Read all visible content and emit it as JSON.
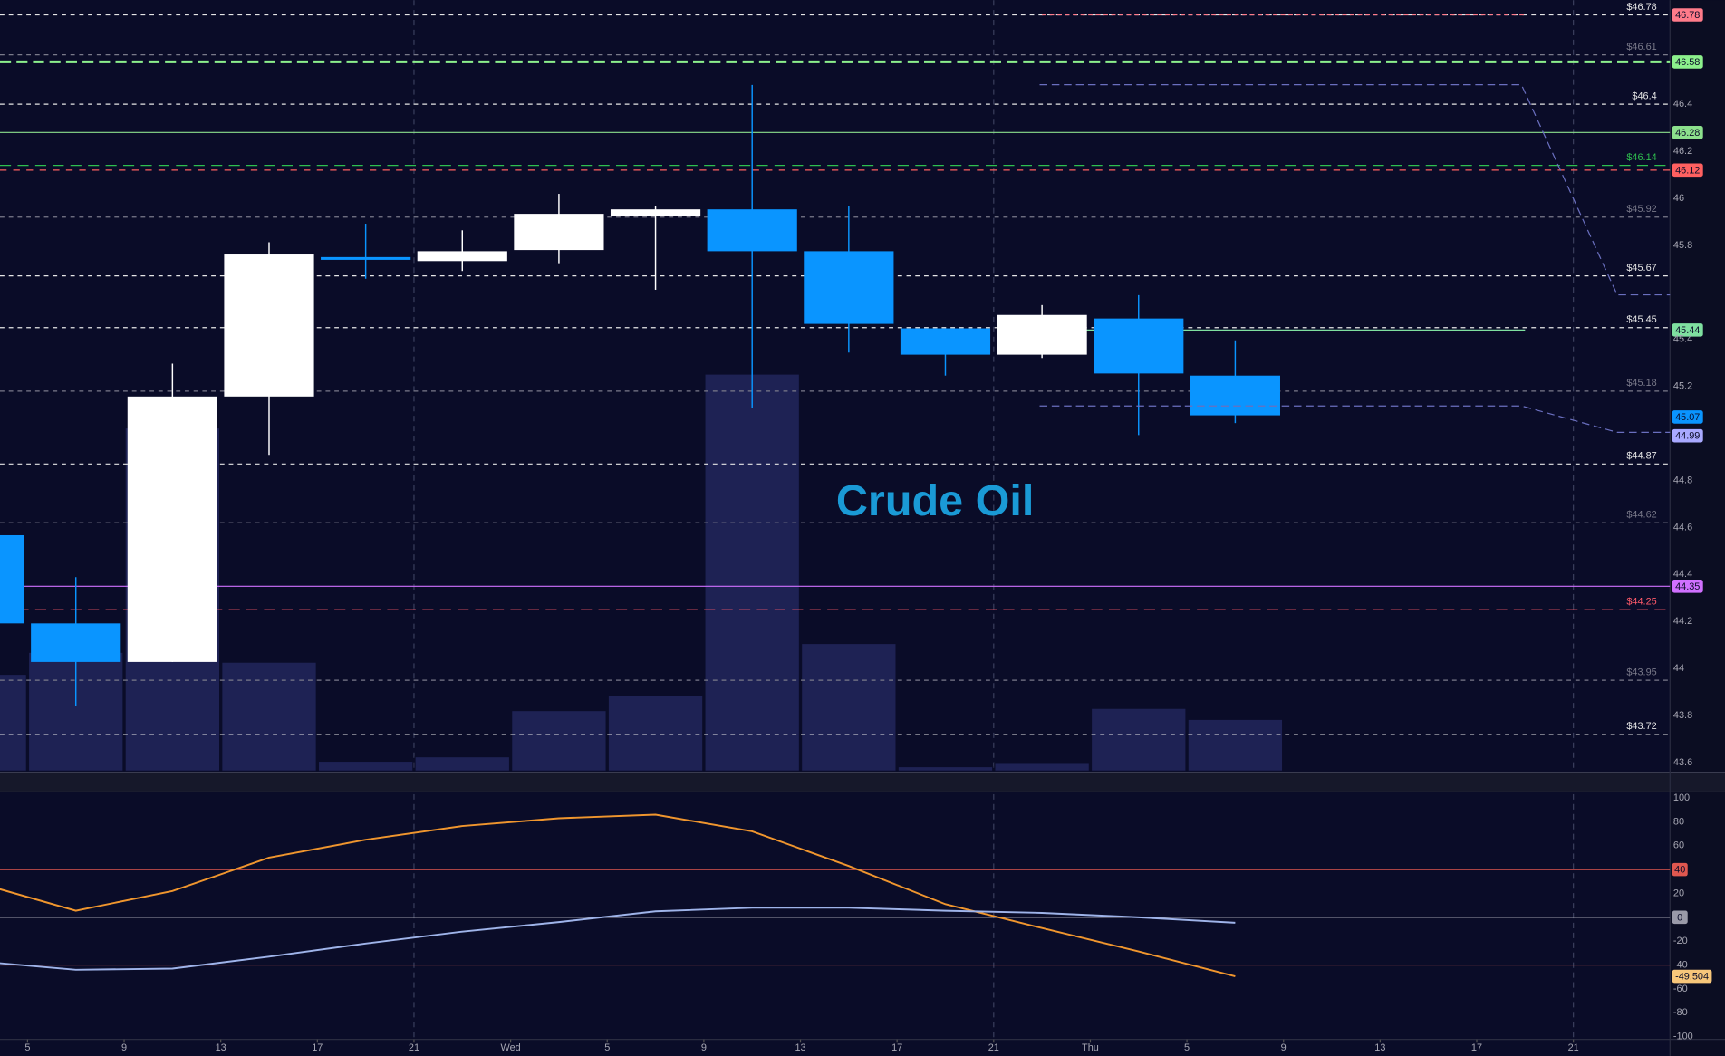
{
  "chart_data": [
    {
      "type": "candlestick",
      "title": "Crude Oil",
      "x": [
        -2,
        2,
        6,
        10,
        14,
        18,
        22,
        26,
        30,
        34,
        38,
        42,
        46,
        50
      ],
      "open": [
        44.567,
        44.192,
        44.028,
        45.157,
        45.75,
        45.733,
        45.78,
        45.925,
        45.953,
        45.775,
        45.447,
        45.335,
        45.489,
        45.246
      ],
      "high": [
        44.567,
        44.389,
        45.297,
        45.813,
        45.892,
        45.864,
        46.019,
        45.967,
        46.482,
        45.967,
        45.447,
        45.546,
        45.588,
        45.396
      ],
      "low": [
        44.192,
        43.841,
        44.028,
        44.909,
        45.658,
        45.691,
        45.724,
        45.611,
        45.11,
        45.344,
        45.246,
        45.321,
        44.993,
        45.044
      ],
      "close": [
        44.192,
        44.028,
        45.157,
        45.761,
        45.74,
        45.775,
        45.934,
        45.953,
        45.775,
        45.466,
        45.335,
        45.504,
        45.255,
        45.077
      ],
      "volume": [
        88,
        108,
        312,
        99,
        9,
        13,
        55,
        69,
        361,
        116,
        4,
        7,
        57,
        47
      ],
      "up_color": "#ffffff",
      "down_color": "#0a95ff",
      "volume_color": "#1e2254",
      "xlim": [
        -1.14,
        68.0
      ],
      "xticks": [
        {
          "value": 0,
          "label": "5"
        },
        {
          "value": 4,
          "label": "9"
        },
        {
          "value": 8,
          "label": "13"
        },
        {
          "value": 12,
          "label": "17"
        },
        {
          "value": 16,
          "label": "21"
        },
        {
          "value": 20,
          "label": "Wed"
        },
        {
          "value": 24,
          "label": "5"
        },
        {
          "value": 28,
          "label": "9"
        },
        {
          "value": 32,
          "label": "13"
        },
        {
          "value": 36,
          "label": "17"
        },
        {
          "value": 40,
          "label": "21"
        },
        {
          "value": 44,
          "label": "Thu"
        },
        {
          "value": 48,
          "label": "5"
        },
        {
          "value": 52,
          "label": "9"
        },
        {
          "value": 56,
          "label": "13"
        },
        {
          "value": 60,
          "label": "17"
        },
        {
          "value": 64,
          "label": "21"
        }
      ],
      "xgrid": [
        16,
        40,
        64
      ],
      "ylim": [
        43.564,
        46.843
      ],
      "yticks": [
        46.4,
        46.2,
        46,
        45.8,
        45.4,
        45.2,
        44.8,
        44.6,
        44.4,
        44.2,
        44,
        43.8,
        43.6
      ],
      "levels": [
        {
          "value": 46.78,
          "label": "$46.78",
          "color": "#e6e6e6",
          "dash": "4,4"
        },
        {
          "value": 46.78,
          "color": "#ff7b8a",
          "dash": "4,3",
          "box": true,
          "xrange": [
            42,
            62
          ]
        },
        {
          "value": 46.61,
          "label": "$46.61",
          "color": "#7a7a8a",
          "dash": "4,4"
        },
        {
          "value": 46.58,
          "color": "#8cf08c",
          "dash": "10,5",
          "width": 2.5,
          "box": true
        },
        {
          "value": 46.4,
          "label": "$46.4",
          "color": "#e6e6e6",
          "dash": "4,4"
        },
        {
          "value": 46.28,
          "color": "#8ce08c",
          "dash": "none",
          "box": true
        },
        {
          "value": 46.14,
          "label": "$46.14",
          "color": "#2fbf4f",
          "dash": "10,6"
        },
        {
          "value": 46.12,
          "color": "#ff6060",
          "dash": "6,6",
          "box": true
        },
        {
          "value": 45.92,
          "label": "$45.92",
          "color": "#7a7a8a",
          "dash": "4,4"
        },
        {
          "value": 45.67,
          "label": "$45.67",
          "color": "#e6e6e6",
          "dash": "4,4"
        },
        {
          "value": 45.45,
          "label": "$45.45",
          "color": "#e6e6e6",
          "dash": "4,4"
        },
        {
          "value": 45.44,
          "color": "#7fe0a0",
          "dash": "none",
          "box": true,
          "xrange": [
            42,
            62
          ]
        },
        {
          "value": 45.18,
          "label": "$45.18",
          "color": "#7a7a8a",
          "dash": "4,4"
        },
        {
          "value": 45.07,
          "color": "#0a95ff",
          "line": false,
          "box": true
        },
        {
          "value": 44.99,
          "color": "#a9a9ff",
          "line": false,
          "box": true
        },
        {
          "value": 44.87,
          "label": "$44.87",
          "color": "#e6e6e6",
          "dash": "4,4"
        },
        {
          "value": 44.62,
          "label": "$44.62",
          "color": "#7a7a8a",
          "dash": "4,4"
        },
        {
          "value": 44.35,
          "color": "#d070ff",
          "dash": "none",
          "box": true
        },
        {
          "value": 44.25,
          "label": "$44.25",
          "color": "#ff5a6a",
          "dash": "10,6"
        },
        {
          "value": 43.95,
          "label": "$43.95",
          "color": "#7a7a8a",
          "dash": "4,4"
        },
        {
          "value": 43.72,
          "label": "$43.72",
          "color": "#e6e6e6",
          "dash": "4,4"
        }
      ]
    },
    {
      "type": "line",
      "x": [
        -2,
        2,
        6,
        10,
        14,
        18,
        22,
        26,
        30,
        34,
        38,
        42,
        46,
        50
      ],
      "xlim": [
        -1.14,
        68.0
      ],
      "series": [
        {
          "color": "#f0962e",
          "values": [
            28.5,
            5.5,
            22,
            50,
            65,
            76.5,
            83,
            86,
            72,
            43,
            11,
            -9,
            -28.6,
            -49.504
          ]
        },
        {
          "color": "#9fb4ea",
          "values": [
            -37,
            -44,
            -43,
            -33,
            -22,
            -12,
            -4,
            5,
            8,
            8,
            5.5,
            3.7,
            0,
            -4.6
          ]
        }
      ],
      "ylim": [
        -102.3,
        103.2
      ],
      "yticks": [
        100,
        80,
        60,
        20,
        -20,
        -40,
        -60,
        -80,
        -100
      ],
      "levels": [
        {
          "value": 40,
          "color": "#e0574f",
          "box": true
        },
        {
          "value": 0,
          "color": "#9a9aa8",
          "box": true
        },
        {
          "value": -40,
          "color": "#e0574f"
        }
      ]
    }
  ]
}
